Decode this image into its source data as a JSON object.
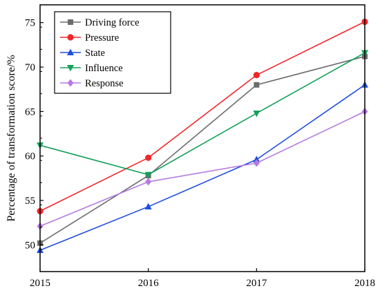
{
  "chart_data": {
    "type": "line",
    "title": "",
    "xlabel": "",
    "ylabel": "Percentage of transformation score/%",
    "x": [
      "2015",
      "2016",
      "2017",
      "2018"
    ],
    "xlim": [
      2015,
      2018
    ],
    "ylim": [
      47,
      77
    ],
    "yticks": [
      50,
      55,
      60,
      65,
      70,
      75
    ],
    "yticklabels": [
      "50",
      "55",
      "60",
      "65",
      "70",
      "75"
    ],
    "grid": false,
    "legend_position": "top-left",
    "series": [
      {
        "name": "Driving force",
        "values": [
          50.2,
          57.8,
          68.0,
          71.2
        ],
        "color": "#6d6d6d",
        "marker": "square"
      },
      {
        "name": "Pressure",
        "values": [
          53.8,
          59.8,
          69.1,
          75.1
        ],
        "color": "#f0272a",
        "marker": "circle"
      },
      {
        "name": "State",
        "values": [
          49.4,
          54.3,
          59.6,
          68.0
        ],
        "color": "#1f4fdc",
        "marker": "triangle-up"
      },
      {
        "name": "Influence",
        "values": [
          61.2,
          57.9,
          64.8,
          71.6
        ],
        "color": "#14a05a",
        "marker": "triangle-down"
      },
      {
        "name": "Response",
        "values": [
          52.1,
          57.1,
          59.2,
          65.0
        ],
        "color": "#b57ae0",
        "marker": "diamond"
      }
    ]
  }
}
